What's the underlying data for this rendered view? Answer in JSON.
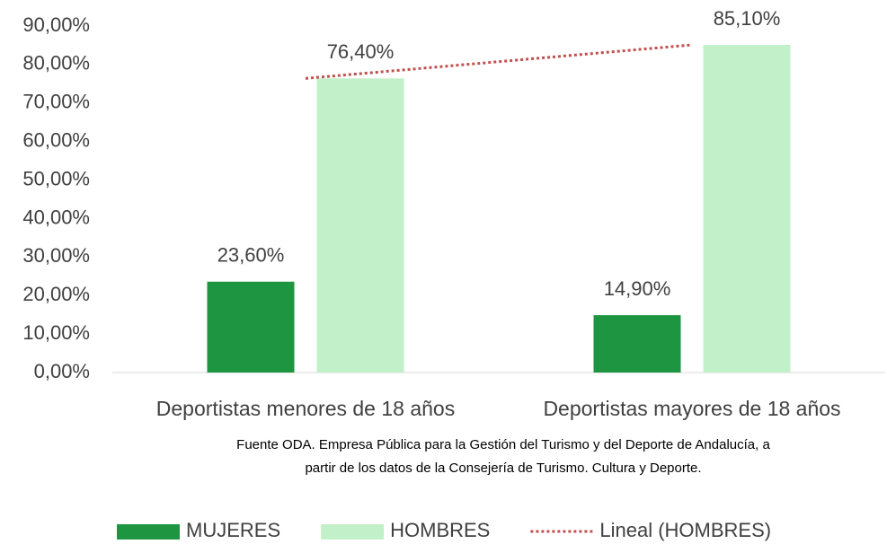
{
  "chart_data": {
    "type": "bar",
    "categories": [
      "Deportistas menores de 18 años",
      "Deportistas mayores de 18 años"
    ],
    "series": [
      {
        "name": "MUJERES",
        "color": "#1e9641",
        "values": [
          23.6,
          14.9
        ],
        "value_labels": [
          "23,60%",
          "14,90%"
        ]
      },
      {
        "name": "HOMBRES",
        "color": "#c2f0c8",
        "values": [
          76.4,
          85.1
        ],
        "value_labels": [
          "76,40%",
          "85,10%"
        ]
      }
    ],
    "trendline": {
      "name": "Lineal (HOMBRES)",
      "series": 1,
      "color": "#c0504d"
    },
    "ylim": [
      0,
      90
    ],
    "yticks": [
      {
        "value": 0,
        "label": "0,00%"
      },
      {
        "value": 10,
        "label": "10,00%"
      },
      {
        "value": 20,
        "label": "20,00%"
      },
      {
        "value": 30,
        "label": "30,00%"
      },
      {
        "value": 40,
        "label": "40,00%"
      },
      {
        "value": 50,
        "label": "50,00%"
      },
      {
        "value": 60,
        "label": "60,00%"
      },
      {
        "value": 70,
        "label": "70,00%"
      },
      {
        "value": 80,
        "label": "80,00%"
      },
      {
        "value": 90,
        "label": "90,00%"
      }
    ],
    "grid": false,
    "source": [
      "Fuente ODA. Empresa Pública para la Gestión del Turismo y del Deporte de Andalucía, a",
      "partir de los datos de la Consejería de Turismo. Cultura y Deporte."
    ]
  }
}
